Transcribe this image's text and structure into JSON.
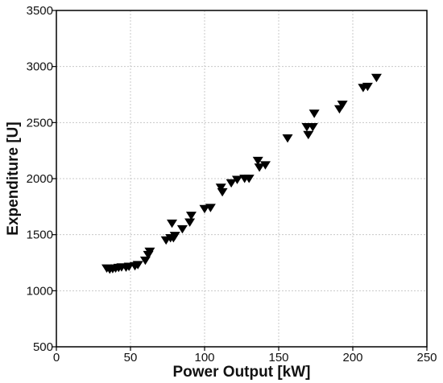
{
  "chart_data": {
    "type": "scatter",
    "title": "",
    "xlabel": "Power Output [kW]",
    "ylabel": "Expenditure [U]",
    "xlim": [
      0,
      250
    ],
    "ylim": [
      500,
      3500
    ],
    "x_ticks": [
      0,
      50,
      100,
      150,
      200,
      250
    ],
    "y_ticks": [
      500,
      1000,
      1500,
      2000,
      2500,
      3000,
      3500
    ],
    "grid": true,
    "marker": "triangle-down",
    "marker_color": "#000000",
    "series": [
      {
        "x": [
          34,
          36,
          38,
          40,
          42,
          44,
          47,
          49,
          53,
          55,
          60,
          62,
          63,
          74,
          77,
          78,
          79,
          80,
          85,
          90,
          91,
          100,
          104,
          111,
          112,
          118,
          122,
          127,
          130,
          136,
          137,
          141,
          156,
          169,
          170,
          173,
          174,
          191,
          193,
          207,
          210,
          216
        ],
        "y": [
          1200,
          1190,
          1195,
          1200,
          1205,
          1210,
          1208,
          1215,
          1220,
          1230,
          1270,
          1320,
          1350,
          1450,
          1470,
          1600,
          1470,
          1490,
          1550,
          1610,
          1670,
          1730,
          1740,
          1920,
          1880,
          1960,
          1990,
          2000,
          2000,
          2160,
          2100,
          2120,
          2360,
          2460,
          2390,
          2460,
          2580,
          2620,
          2660,
          2810,
          2820,
          2900
        ]
      }
    ]
  }
}
